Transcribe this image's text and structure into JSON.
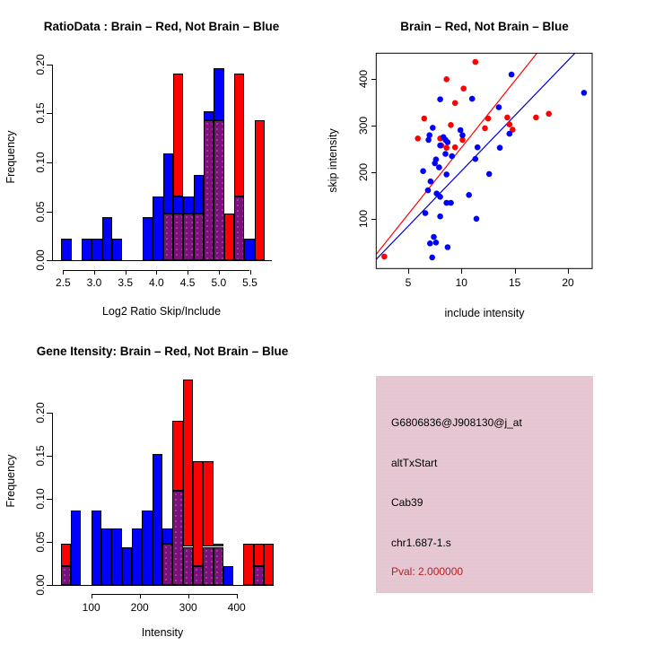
{
  "colors": {
    "red": "#FF0000",
    "blue": "#0000FF",
    "purple": "#7B117B",
    "line_red": "#FF0000",
    "line_blue": "#0000CD",
    "pink_bg": "#EAC6D1",
    "info_text": "#000000",
    "pval_text": "#B22222",
    "axis": "#000000"
  },
  "chart_data": [
    {
      "id": "ratio_hist",
      "type": "histogram",
      "title": "RatioData : Brain – Red, Not Brain – Blue",
      "xlabel": "Log2 Ratio Skip/Include",
      "ylabel": "Frequency",
      "xtick_values": [
        2.5,
        3.0,
        3.5,
        4.0,
        4.5,
        5.0,
        5.5
      ],
      "xtick_labels": [
        "2.5",
        "3.0",
        "3.5",
        "4.0",
        "4.5",
        "5.0",
        "5.5"
      ],
      "ytick_values": [
        0.0,
        0.05,
        0.1,
        0.15,
        0.2
      ],
      "ytick_labels": [
        "0.00",
        "0.05",
        "0.10",
        "0.15",
        "0.20"
      ],
      "xlim": [
        2.32,
        5.85
      ],
      "ylim": [
        0,
        0.21
      ],
      "legend_note": "red = Brain, blue = Not Brain, purple = overlap",
      "bars": [
        {
          "x0": 2.471,
          "x1": 2.634,
          "segments": [
            [
              "blue",
              0,
              0.022
            ]
          ]
        },
        {
          "x0": 2.797,
          "x1": 2.961,
          "segments": [
            [
              "blue",
              0,
              0.022
            ]
          ]
        },
        {
          "x0": 2.961,
          "x1": 3.124,
          "segments": [
            [
              "blue",
              0,
              0.022
            ]
          ]
        },
        {
          "x0": 3.124,
          "x1": 3.287,
          "segments": [
            [
              "blue",
              0,
              0.044
            ]
          ]
        },
        {
          "x0": 3.287,
          "x1": 3.451,
          "segments": [
            [
              "blue",
              0,
              0.022
            ]
          ]
        },
        {
          "x0": 3.777,
          "x1": 3.941,
          "segments": [
            [
              "blue",
              0,
              0.044
            ]
          ]
        },
        {
          "x0": 3.941,
          "x1": 4.104,
          "segments": [
            [
              "blue",
              0,
              0.065
            ]
          ]
        },
        {
          "x0": 4.104,
          "x1": 4.267,
          "segments": [
            [
              "purple",
              0,
              0.048
            ],
            [
              "blue",
              0.048,
              0.109
            ]
          ]
        },
        {
          "x0": 4.267,
          "x1": 4.431,
          "segments": [
            [
              "purple",
              0,
              0.048
            ],
            [
              "blue",
              0.048,
              0.065
            ],
            [
              "red",
              0.065,
              0.19
            ]
          ]
        },
        {
          "x0": 4.431,
          "x1": 4.594,
          "segments": [
            [
              "purple",
              0,
              0.048
            ],
            [
              "blue",
              0.048,
              0.065
            ]
          ]
        },
        {
          "x0": 4.594,
          "x1": 4.757,
          "segments": [
            [
              "purple",
              0,
              0.048
            ],
            [
              "blue",
              0.048,
              0.087
            ]
          ]
        },
        {
          "x0": 4.757,
          "x1": 4.921,
          "segments": [
            [
              "purple",
              0,
              0.143
            ],
            [
              "blue",
              0.143,
              0.152
            ]
          ]
        },
        {
          "x0": 4.921,
          "x1": 5.084,
          "segments": [
            [
              "purple",
              0,
              0.143
            ],
            [
              "blue",
              0.143,
              0.196
            ]
          ]
        },
        {
          "x0": 5.084,
          "x1": 5.247,
          "segments": [
            [
              "red",
              0,
              0.048
            ]
          ]
        },
        {
          "x0": 5.247,
          "x1": 5.411,
          "segments": [
            [
              "purple",
              0,
              0.065
            ],
            [
              "red",
              0.065,
              0.19
            ]
          ]
        },
        {
          "x0": 5.411,
          "x1": 5.574,
          "segments": [
            [
              "blue",
              0,
              0.022
            ]
          ]
        },
        {
          "x0": 5.574,
          "x1": 5.737,
          "segments": [
            [
              "red",
              0,
              0.143
            ]
          ]
        }
      ]
    },
    {
      "id": "scatter",
      "type": "scatter",
      "title": "Brain – Red, Not Brain – Blue",
      "xlabel": "include intensity",
      "ylabel": "skip intensity",
      "xtick_values": [
        5,
        10,
        15,
        20
      ],
      "xtick_labels": [
        "5",
        "10",
        "15",
        "20"
      ],
      "ytick_values": [
        100,
        200,
        300,
        400
      ],
      "ytick_labels": [
        "100",
        "200",
        "300",
        "400"
      ],
      "xlim": [
        2.0,
        22.3
      ],
      "ylim": [
        -6,
        456
      ],
      "series": [
        {
          "name": "brain",
          "color": "red",
          "points": [
            [
              2.75,
              20
            ],
            [
              5.9,
              273
            ],
            [
              6.5,
              316
            ],
            [
              8.0,
              273
            ],
            [
              8.1,
              258
            ],
            [
              8.6,
              253
            ],
            [
              9.4,
              254
            ],
            [
              10.1,
              270
            ],
            [
              9.0,
              302
            ],
            [
              8.6,
              400
            ],
            [
              10.2,
              380
            ],
            [
              9.4,
              349
            ],
            [
              11.3,
              437
            ],
            [
              12.2,
              295
            ],
            [
              12.5,
              316
            ],
            [
              14.3,
              318
            ],
            [
              14.5,
              303
            ],
            [
              14.8,
              292
            ],
            [
              17.0,
              318
            ],
            [
              18.2,
              326
            ]
          ]
        },
        {
          "name": "not_brain",
          "color": "blue",
          "points": [
            [
              14.7,
              410
            ],
            [
              21.5,
              371
            ],
            [
              11.0,
              358
            ],
            [
              8.0,
              357
            ],
            [
              13.5,
              340
            ],
            [
              14.5,
              283
            ],
            [
              7.3,
              296
            ],
            [
              9.9,
              291
            ],
            [
              10.1,
              280
            ],
            [
              7.0,
              280
            ],
            [
              6.9,
              270
            ],
            [
              8.3,
              276
            ],
            [
              8.5,
              270
            ],
            [
              8.7,
              265
            ],
            [
              8.0,
              258
            ],
            [
              11.5,
              254
            ],
            [
              13.6,
              253
            ],
            [
              8.5,
              240
            ],
            [
              9.1,
              235
            ],
            [
              7.6,
              228
            ],
            [
              7.5,
              220
            ],
            [
              11.3,
              229
            ],
            [
              7.9,
              211
            ],
            [
              6.4,
              203
            ],
            [
              8.6,
              196
            ],
            [
              12.6,
              197
            ],
            [
              7.1,
              181
            ],
            [
              6.85,
              162
            ],
            [
              7.67,
              155
            ],
            [
              8.0,
              148
            ],
            [
              10.7,
              152
            ],
            [
              8.6,
              135
            ],
            [
              9.0,
              135
            ],
            [
              6.6,
              113
            ],
            [
              8.0,
              106
            ],
            [
              11.4,
              101
            ],
            [
              7.4,
              62
            ],
            [
              7.05,
              48
            ],
            [
              7.6,
              50
            ],
            [
              8.7,
              40
            ],
            [
              7.25,
              18
            ]
          ]
        }
      ],
      "lines": [
        {
          "name": "brain_fit",
          "color": "line_red",
          "from": [
            2.0,
            25
          ],
          "to": [
            17.3,
            462
          ]
        },
        {
          "name": "not_brain_fit",
          "color": "line_blue",
          "from": [
            2.0,
            14
          ],
          "to": [
            21.0,
            464
          ]
        }
      ]
    },
    {
      "id": "gene_hist",
      "type": "histogram",
      "title": "Gene Itensity: Brain – Red, Not Brain – Blue",
      "xlabel": "Intensity",
      "ylabel": "Frequency",
      "xtick_values": [
        100,
        200,
        300,
        400
      ],
      "xtick_labels": [
        "100",
        "200",
        "300",
        "400"
      ],
      "ytick_values": [
        0.0,
        0.05,
        0.1,
        0.15,
        0.2
      ],
      "ytick_labels": [
        "0.00",
        "0.05",
        "0.10",
        "0.15",
        "0.20"
      ],
      "xlim": [
        19,
        478
      ],
      "ylim": [
        0,
        0.245
      ],
      "legend_note": "red = Brain, blue = Not Brain, purple = overlap",
      "bars": [
        {
          "x0": 37,
          "x1": 58,
          "segments": [
            [
              "purple",
              0,
              0.022
            ],
            [
              "red",
              0.022,
              0.048
            ]
          ]
        },
        {
          "x0": 58,
          "x1": 79,
          "segments": [
            [
              "blue",
              0,
              0.086
            ]
          ]
        },
        {
          "x0": 100,
          "x1": 121,
          "segments": [
            [
              "blue",
              0,
              0.086
            ]
          ]
        },
        {
          "x0": 121,
          "x1": 142,
          "segments": [
            [
              "blue",
              0,
              0.065
            ]
          ]
        },
        {
          "x0": 142,
          "x1": 163,
          "segments": [
            [
              "blue",
              0,
              0.065
            ]
          ]
        },
        {
          "x0": 163,
          "x1": 184,
          "segments": [
            [
              "blue",
              0,
              0.044
            ]
          ]
        },
        {
          "x0": 184,
          "x1": 205,
          "segments": [
            [
              "blue",
              0,
              0.065
            ]
          ]
        },
        {
          "x0": 205,
          "x1": 226,
          "segments": [
            [
              "blue",
              0,
              0.086
            ]
          ]
        },
        {
          "x0": 226,
          "x1": 247,
          "segments": [
            [
              "blue",
              0,
              0.152
            ]
          ]
        },
        {
          "x0": 247,
          "x1": 268,
          "segments": [
            [
              "purple",
              0,
              0.048
            ],
            [
              "blue",
              0.048,
              0.065
            ]
          ]
        },
        {
          "x0": 268,
          "x1": 289,
          "segments": [
            [
              "purple",
              0,
              0.109
            ],
            [
              "red",
              0.109,
              0.19
            ]
          ]
        },
        {
          "x0": 289,
          "x1": 310,
          "segments": [
            [
              "purple",
              0,
              0.044
            ],
            [
              "red",
              0.044,
              0.238
            ]
          ]
        },
        {
          "x0": 310,
          "x1": 331,
          "segments": [
            [
              "purple",
              0,
              0.022
            ],
            [
              "red",
              0.022,
              0.143
            ]
          ]
        },
        {
          "x0": 331,
          "x1": 352,
          "segments": [
            [
              "purple",
              0,
              0.044
            ],
            [
              "red",
              0.044,
              0.143
            ]
          ]
        },
        {
          "x0": 352,
          "x1": 373,
          "segments": [
            [
              "purple",
              0,
              0.044
            ],
            [
              "red",
              0.044,
              0.048
            ]
          ]
        },
        {
          "x0": 373,
          "x1": 394,
          "segments": [
            [
              "blue",
              0,
              0.022
            ]
          ]
        },
        {
          "x0": 414,
          "x1": 435,
          "segments": [
            [
              "red",
              0,
              0.048
            ]
          ]
        },
        {
          "x0": 435,
          "x1": 456,
          "segments": [
            [
              "purple",
              0,
              0.022
            ],
            [
              "red",
              0.022,
              0.048
            ]
          ]
        },
        {
          "x0": 456,
          "x1": 477,
          "segments": [
            [
              "red",
              0,
              0.048
            ]
          ]
        }
      ]
    },
    {
      "id": "info",
      "type": "text_panel",
      "lines": [
        {
          "text": "G6806836@J908130@j_at",
          "color": "info_text"
        },
        {
          "text": "altTxStart",
          "color": "info_text"
        },
        {
          "text": "Cab39",
          "color": "info_text"
        },
        {
          "text": "chr1.687-1.s",
          "color": "info_text"
        },
        {
          "text": "Pval: 2.000000",
          "color": "pval_text"
        }
      ]
    }
  ]
}
